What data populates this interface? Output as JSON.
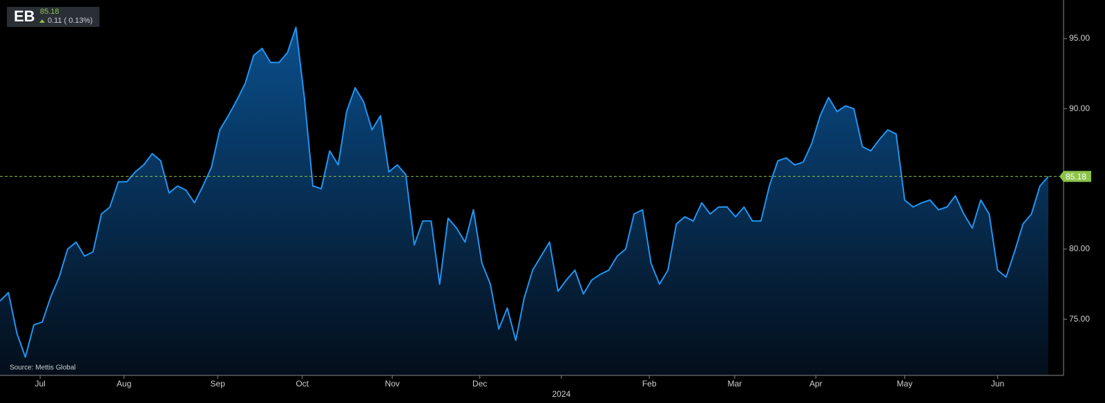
{
  "chart_data": {
    "type": "area",
    "symbol": "EB",
    "last_price": 85.18,
    "change": "0.11 ( 0.13%)",
    "source": "Source: Mettis Global",
    "color": "#2196f3",
    "price_line_color": "#8bc34a",
    "values": [
      76.3,
      76.9,
      74.0,
      72.3,
      74.6,
      74.8,
      76.6,
      78.0,
      80.0,
      80.5,
      79.5,
      79.8,
      82.5,
      83.0,
      84.8,
      84.8,
      85.5,
      86.0,
      86.8,
      86.3,
      84.0,
      84.5,
      84.2,
      83.3,
      84.5,
      85.8,
      88.5,
      89.5,
      90.6,
      91.8,
      93.8,
      94.3,
      93.3,
      93.3,
      94.0,
      95.8,
      90.8,
      84.5,
      84.3,
      87.0,
      86.0,
      89.8,
      91.5,
      90.5,
      88.5,
      89.5,
      85.5,
      86.0,
      85.3,
      80.3,
      82.0,
      82.0,
      77.5,
      82.2,
      81.5,
      80.5,
      82.8,
      79.0,
      77.5,
      74.3,
      75.8,
      73.5,
      76.5,
      78.5,
      79.5,
      80.5,
      77.0,
      77.8,
      78.5,
      76.8,
      77.8,
      78.2,
      78.5,
      79.5,
      80.0,
      82.5,
      82.8,
      79.0,
      77.5,
      78.5,
      81.8,
      82.3,
      82.0,
      83.3,
      82.5,
      83.0,
      83.0,
      82.3,
      83.0,
      82.0,
      82.0,
      84.5,
      86.3,
      86.5,
      86.0,
      86.2,
      87.5,
      89.5,
      90.8,
      89.8,
      90.2,
      90.0,
      87.3,
      87.0,
      87.8,
      88.5,
      88.2,
      83.5,
      83.0,
      83.3,
      83.5,
      82.8,
      83.0,
      83.8,
      82.5,
      81.5,
      83.5,
      82.5,
      78.5,
      78.0,
      79.8,
      81.8,
      82.5,
      84.5,
      85.18
    ],
    "xlim": [
      0,
      124
    ],
    "xticks": [
      {
        "value": 4.75,
        "label": "Jul"
      },
      {
        "value": 14.67,
        "label": "Aug"
      },
      {
        "value": 25.75,
        "label": "Sep"
      },
      {
        "value": 35.75,
        "label": "Oct"
      },
      {
        "value": 46.4,
        "label": "Nov"
      },
      {
        "value": 56.75,
        "label": "Dec"
      },
      {
        "value": 66.4,
        "label": "2024"
      },
      {
        "value": 76.8,
        "label": "Feb"
      },
      {
        "value": 86.9,
        "label": "Mar"
      },
      {
        "value": 96.5,
        "label": "Apr"
      },
      {
        "value": 107,
        "label": "May"
      },
      {
        "value": 118,
        "label": "Jun"
      }
    ],
    "ylim": [
      71,
      97.75
    ],
    "yticks": [
      {
        "value": 75,
        "label": "75.00"
      },
      {
        "value": 80,
        "label": "80.00"
      },
      {
        "value": 90,
        "label": "90.00"
      },
      {
        "value": 95,
        "label": "95.00"
      }
    ]
  }
}
